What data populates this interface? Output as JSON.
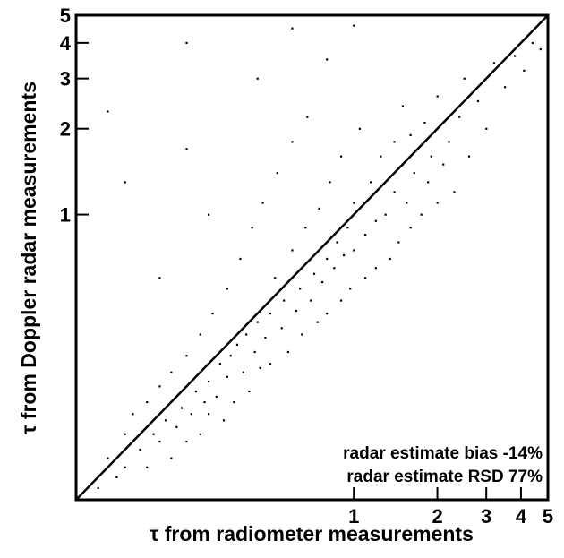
{
  "chart_data": {
    "type": "scatter",
    "xlabel": "τ from radiometer measurements",
    "ylabel": "τ from Doppler radar measurements",
    "annotations": [
      "radar estimate bias  -14%",
      "radar estimate RSD 77%"
    ],
    "xscale": "log",
    "yscale": "log",
    "xlim": [
      0.1,
      5
    ],
    "ylim": [
      0.1,
      5
    ],
    "xticks": [
      1,
      2,
      3,
      4,
      5
    ],
    "yticks": [
      1,
      2,
      3,
      4,
      5
    ],
    "color": "#000000",
    "lines": [
      {
        "x": [
          0.1,
          5
        ],
        "y": [
          0.1,
          5
        ]
      }
    ],
    "x": [
      0.12,
      0.13,
      0.14,
      0.15,
      0.15,
      0.16,
      0.17,
      0.18,
      0.18,
      0.19,
      0.2,
      0.2,
      0.21,
      0.22,
      0.22,
      0.23,
      0.24,
      0.25,
      0.25,
      0.26,
      0.27,
      0.28,
      0.28,
      0.29,
      0.3,
      0.3,
      0.31,
      0.32,
      0.33,
      0.34,
      0.35,
      0.35,
      0.36,
      0.37,
      0.38,
      0.39,
      0.4,
      0.41,
      0.42,
      0.43,
      0.44,
      0.45,
      0.46,
      0.47,
      0.48,
      0.5,
      0.5,
      0.52,
      0.53,
      0.55,
      0.56,
      0.58,
      0.6,
      0.6,
      0.62,
      0.64,
      0.65,
      0.67,
      0.68,
      0.7,
      0.72,
      0.74,
      0.75,
      0.77,
      0.8,
      0.8,
      0.82,
      0.85,
      0.87,
      0.9,
      0.9,
      0.92,
      0.95,
      0.97,
      1.0,
      1.0,
      1.05,
      1.1,
      1.1,
      1.15,
      1.2,
      1.2,
      1.25,
      1.3,
      1.35,
      1.4,
      1.4,
      1.45,
      1.5,
      1.5,
      1.55,
      1.6,
      1.6,
      1.65,
      1.7,
      1.75,
      1.8,
      1.85,
      1.9,
      2.0,
      2.0,
      2.1,
      2.2,
      2.3,
      2.4,
      2.5,
      2.6,
      2.8,
      3.0,
      3.2,
      3.5,
      3.8,
      4.1,
      4.4,
      4.7,
      0.15,
      0.13,
      0.2,
      0.25,
      0.3,
      0.45,
      0.6,
      0.8,
      1.0,
      0.25
    ],
    "y": [
      0.11,
      0.14,
      0.12,
      0.17,
      0.13,
      0.2,
      0.15,
      0.13,
      0.22,
      0.17,
      0.16,
      0.25,
      0.19,
      0.14,
      0.28,
      0.18,
      0.21,
      0.16,
      0.32,
      0.2,
      0.24,
      0.17,
      0.38,
      0.22,
      0.26,
      0.2,
      0.45,
      0.23,
      0.3,
      0.19,
      0.27,
      0.55,
      0.32,
      0.22,
      0.35,
      0.7,
      0.28,
      0.38,
      0.24,
      0.9,
      0.33,
      0.42,
      0.29,
      1.1,
      0.37,
      0.45,
      0.3,
      0.6,
      1.4,
      0.4,
      0.5,
      0.33,
      0.75,
      1.8,
      0.46,
      0.55,
      0.38,
      0.9,
      2.2,
      0.5,
      0.62,
      0.42,
      1.05,
      0.58,
      0.7,
      0.45,
      1.3,
      0.65,
      0.8,
      0.5,
      1.6,
      0.72,
      0.9,
      0.55,
      1.1,
      0.75,
      2.0,
      0.85,
      0.6,
      1.3,
      0.95,
      0.65,
      1.6,
      1.0,
      0.7,
      1.8,
      1.2,
      0.8,
      1.5,
      2.4,
      1.1,
      1.9,
      0.9,
      1.4,
      1.7,
      1.0,
      2.1,
      1.3,
      1.6,
      1.1,
      2.6,
      1.5,
      1.8,
      1.2,
      2.2,
      3.0,
      1.6,
      2.5,
      2.0,
      3.4,
      2.8,
      3.6,
      3.2,
      4.0,
      3.8,
      1.3,
      2.3,
      0.6,
      4.0,
      1.0,
      3.0,
      4.5,
      3.5,
      4.6,
      1.7
    ]
  }
}
